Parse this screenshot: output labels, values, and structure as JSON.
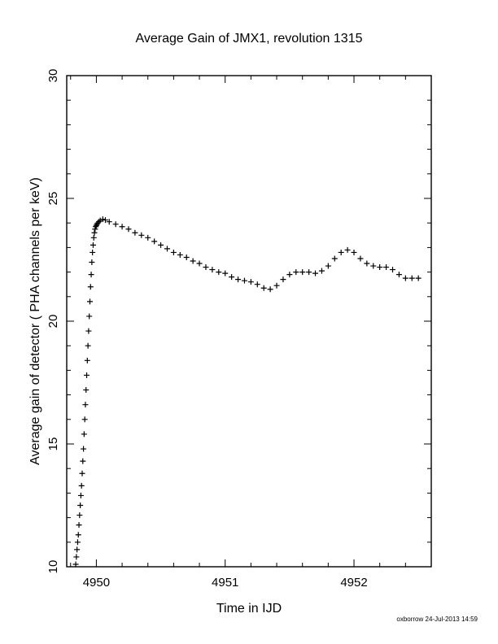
{
  "chart_data": {
    "type": "scatter",
    "title": "Average Gain of JMX1, revolution 1315",
    "xlabel": "Time in IJD",
    "ylabel": "Average gain of detector ( PHA channels per keV)",
    "xlim": [
      4949.77,
      4952.6
    ],
    "ylim": [
      10,
      30
    ],
    "xticks": [
      4950,
      4951,
      4952
    ],
    "yticks": [
      10,
      15,
      20,
      25,
      30
    ],
    "marker": "+",
    "color": "#000000",
    "series": [
      {
        "x": [
          4949.84,
          4949.845,
          4949.85,
          4949.855,
          4949.86,
          4949.865,
          4949.87,
          4949.875,
          4949.88,
          4949.885,
          4949.89,
          4949.895,
          4949.9,
          4949.905,
          4949.91,
          4949.915,
          4949.92,
          4949.925,
          4949.93,
          4949.935,
          4949.94,
          4949.945,
          4949.95,
          4949.955,
          4949.96,
          4949.965,
          4949.97,
          4949.975,
          4949.98,
          4949.985,
          4949.99,
          4949.995,
          4950.0,
          4950.005,
          4950.01,
          4950.02,
          4950.03,
          4950.05,
          4950.07,
          4950.1,
          4950.15,
          4950.2,
          4950.25,
          4950.3,
          4950.35,
          4950.4,
          4950.45,
          4950.5,
          4950.55,
          4950.6,
          4950.65,
          4950.7,
          4950.75,
          4950.8,
          4950.85,
          4950.9,
          4950.95,
          4951.0,
          4951.05,
          4951.1,
          4951.15,
          4951.2,
          4951.25,
          4951.3,
          4951.35,
          4951.4,
          4951.45,
          4951.5,
          4951.55,
          4951.6,
          4951.65,
          4951.7,
          4951.75,
          4951.8,
          4951.85,
          4951.9,
          4951.95,
          4952.0,
          4952.05,
          4952.1,
          4952.15,
          4952.2,
          4952.25,
          4952.3,
          4952.35,
          4952.4,
          4952.45,
          4952.5
        ],
        "y": [
          10.1,
          10.4,
          10.7,
          11.0,
          11.3,
          11.7,
          12.1,
          12.5,
          12.9,
          13.3,
          13.8,
          14.3,
          14.8,
          15.4,
          16.0,
          16.6,
          17.2,
          17.8,
          18.4,
          19.0,
          19.6,
          20.2,
          20.8,
          21.4,
          21.9,
          22.4,
          22.8,
          23.1,
          23.4,
          23.6,
          23.75,
          23.85,
          23.9,
          23.95,
          24.0,
          24.05,
          24.1,
          24.15,
          24.12,
          24.05,
          23.95,
          23.85,
          23.75,
          23.6,
          23.5,
          23.4,
          23.25,
          23.1,
          22.95,
          22.8,
          22.7,
          22.6,
          22.45,
          22.35,
          22.2,
          22.1,
          22.0,
          21.95,
          21.8,
          21.7,
          21.65,
          21.6,
          21.5,
          21.35,
          21.3,
          21.45,
          21.7,
          21.9,
          22.0,
          22.0,
          22.0,
          21.95,
          22.05,
          22.25,
          22.55,
          22.8,
          22.9,
          22.8,
          22.55,
          22.35,
          22.25,
          22.2,
          22.2,
          22.1,
          21.9,
          21.75,
          21.75,
          21.75
        ]
      }
    ],
    "annotations": [
      "oxborrow 24-Jul-2013 14:59"
    ]
  }
}
